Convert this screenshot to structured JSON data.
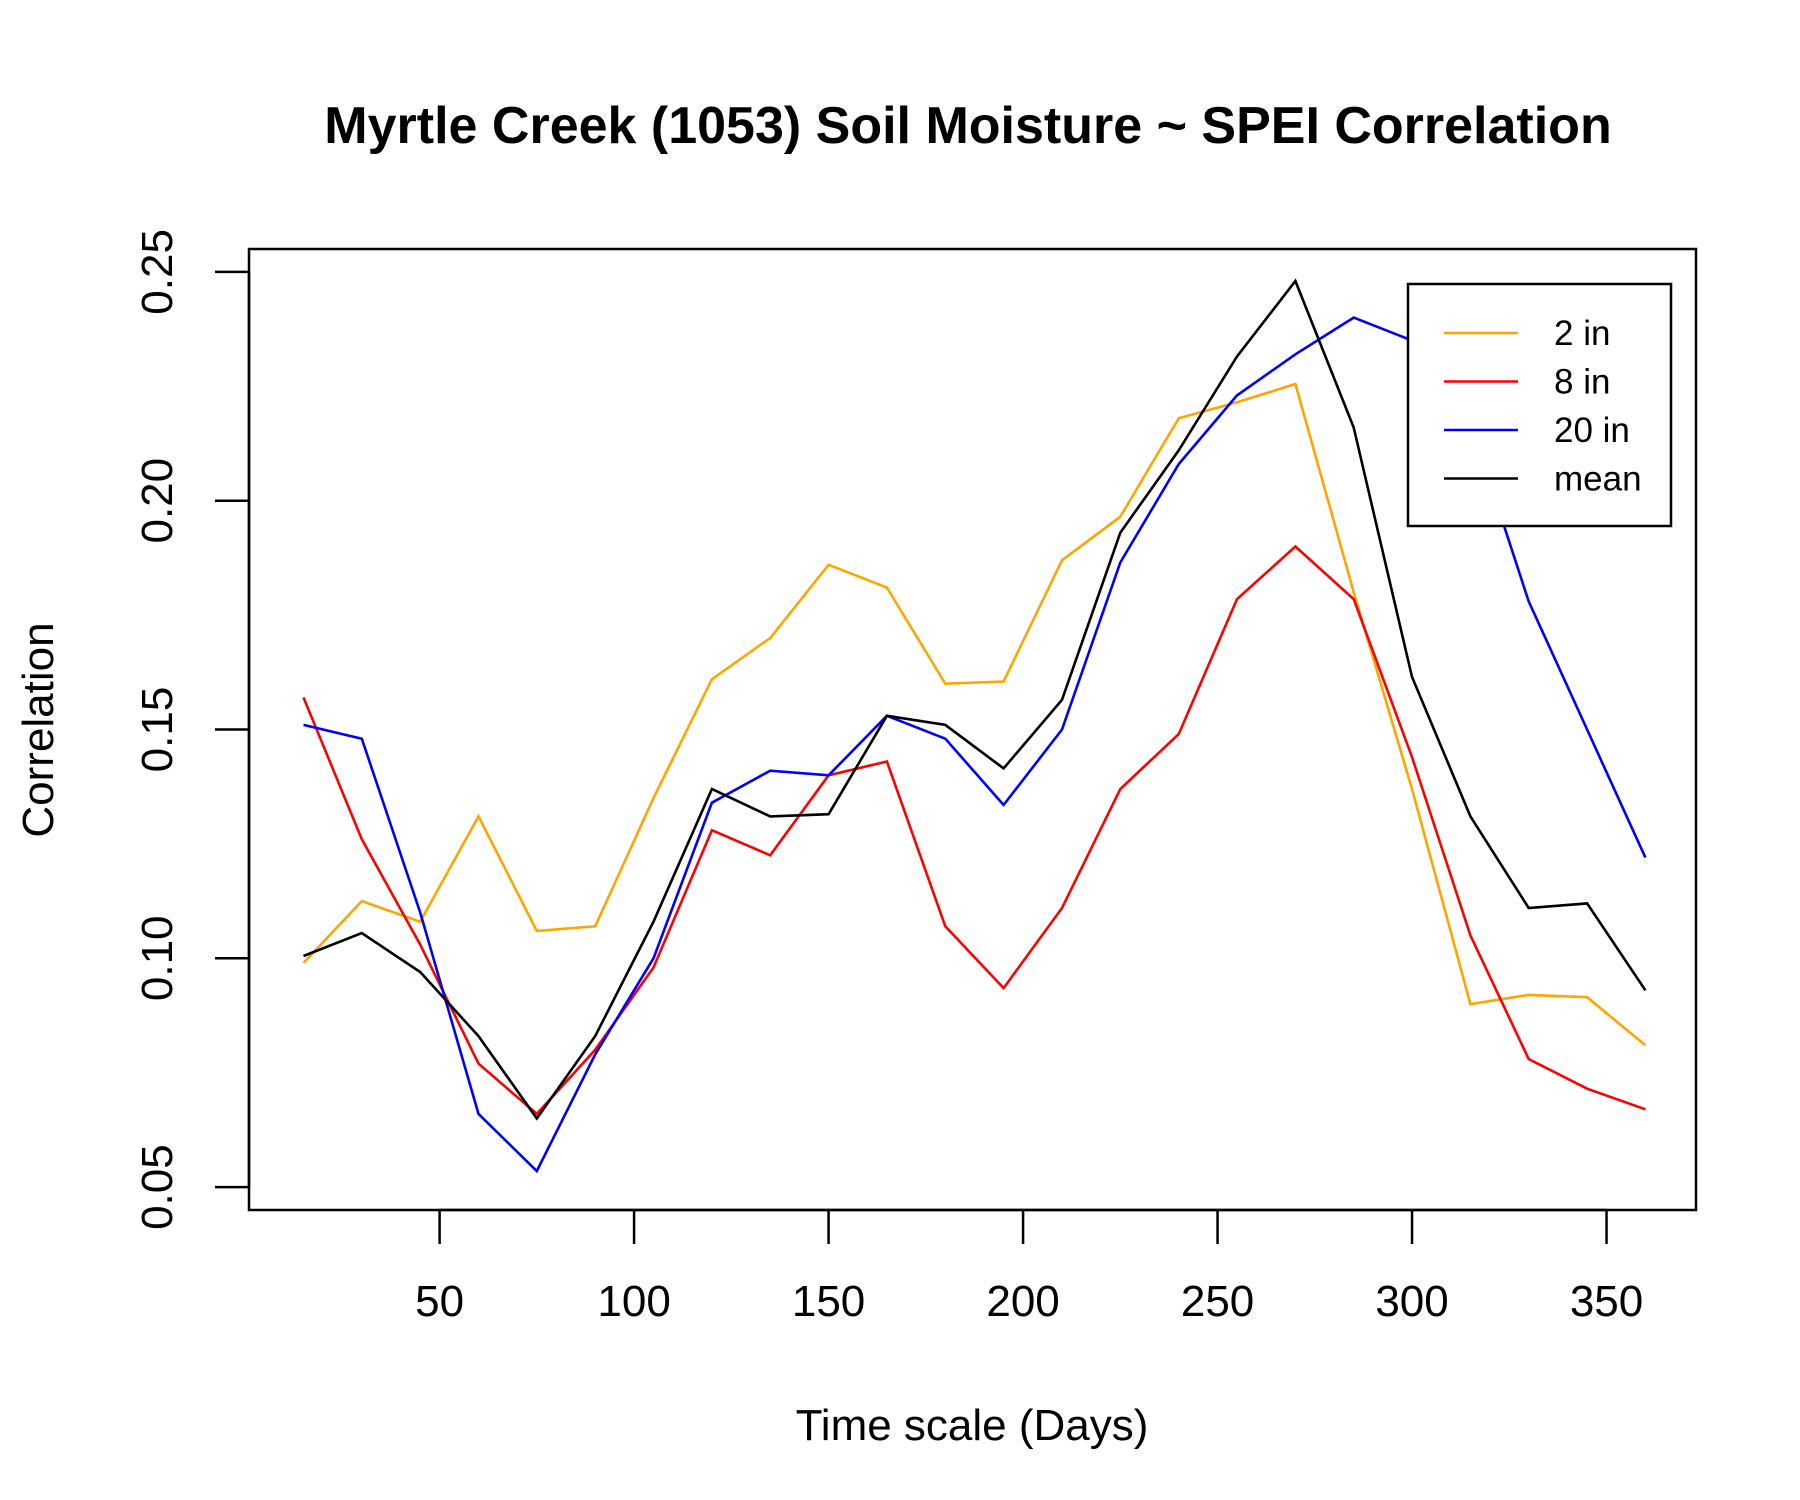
{
  "chart_data": {
    "type": "line",
    "title": "Myrtle Creek (1053) Soil Moisture ~ SPEI Correlation",
    "xlabel": "Time scale (Days)",
    "ylabel": "Correlation",
    "xlim": [
      1,
      373
    ],
    "ylim": [
      0.045,
      0.255
    ],
    "xticks": [
      50,
      100,
      150,
      200,
      250,
      300,
      350
    ],
    "yticks": [
      0.05,
      0.1,
      0.15,
      0.2,
      0.25
    ],
    "ytick_labels": [
      "0.05",
      "0.10",
      "0.15",
      "0.20",
      "0.25"
    ],
    "grid": false,
    "legend_position": "top-right",
    "x": [
      15,
      30,
      45,
      60,
      75,
      90,
      105,
      120,
      135,
      150,
      165,
      180,
      195,
      210,
      225,
      240,
      255,
      270,
      285,
      300,
      315,
      330,
      345,
      360
    ],
    "series": [
      {
        "name": "2 in",
        "color": "#FFA500",
        "values": [
          0.099,
          0.1125,
          0.108,
          0.131,
          0.106,
          0.107,
          0.135,
          0.161,
          0.17,
          0.186,
          0.181,
          0.16,
          0.1605,
          0.187,
          0.1965,
          0.218,
          0.2215,
          0.2255,
          0.18,
          0.137,
          0.09,
          0.092,
          0.0915,
          0.081
        ]
      },
      {
        "name": "8 in",
        "color": "#FF0000",
        "values": [
          0.157,
          0.126,
          0.103,
          0.077,
          0.066,
          0.08,
          0.098,
          0.128,
          0.1225,
          0.14,
          0.143,
          0.107,
          0.0935,
          0.111,
          0.137,
          0.149,
          0.1785,
          0.19,
          0.1785,
          0.144,
          0.105,
          0.078,
          0.0715,
          0.067
        ]
      },
      {
        "name": "20 in",
        "color": "#0000FF",
        "values": [
          0.151,
          0.148,
          0.11,
          0.066,
          0.0535,
          0.079,
          0.1,
          0.134,
          0.141,
          0.14,
          0.153,
          0.148,
          0.1335,
          0.15,
          0.1865,
          0.208,
          0.223,
          0.232,
          0.24,
          0.235,
          0.217,
          0.178,
          0.15,
          0.122
        ]
      },
      {
        "name": "mean",
        "color": "#000000",
        "values": [
          0.1005,
          0.1055,
          0.097,
          0.083,
          0.065,
          0.083,
          0.108,
          0.137,
          0.131,
          0.1315,
          0.153,
          0.151,
          0.1415,
          0.1565,
          0.193,
          0.211,
          0.2315,
          0.248,
          0.216,
          0.1615,
          0.131,
          0.111,
          0.112,
          0.093
        ]
      }
    ]
  }
}
